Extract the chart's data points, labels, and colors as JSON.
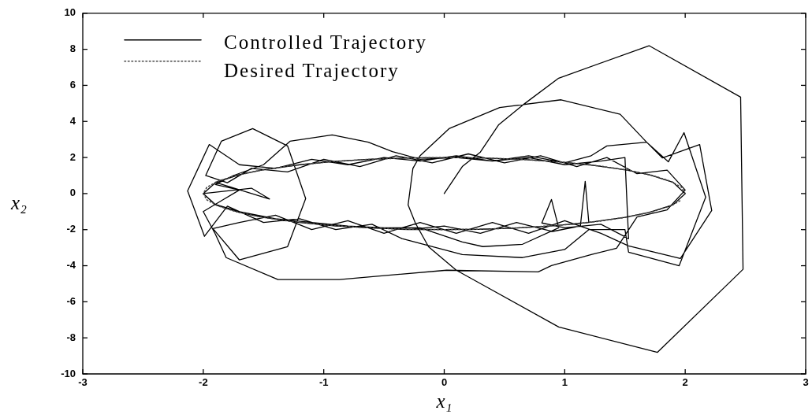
{
  "chart_data": {
    "type": "line",
    "xlabel": "x₁",
    "ylabel": "x₂",
    "xlim": [
      -3,
      3
    ],
    "ylim": [
      -10,
      10
    ],
    "xticks": [
      -3,
      -2,
      -1,
      0,
      1,
      2,
      3
    ],
    "yticks": [
      -10,
      -8,
      -6,
      -4,
      -2,
      0,
      2,
      4,
      6,
      8,
      10
    ],
    "legend": "top left",
    "series": [
      {
        "name": "Controlled Trajectory",
        "color": "#000000",
        "line_style": "solid",
        "x": [
          0,
          0.15,
          0.3,
          0.45,
          0.65,
          0.95,
          1.7,
          2.46,
          2.48,
          1.77,
          0.95,
          0.33,
          0.1,
          -0.13,
          -0.24,
          -0.3,
          -0.26,
          -0.2,
          0.04,
          0.46,
          0.97,
          1.46,
          1.68,
          1.81,
          2.12,
          2.22,
          1.96,
          1.53,
          1.3,
          1.0,
          0.7,
          0.4,
          0.1,
          -0.2,
          -0.5,
          -0.8,
          -1.1,
          -1.4,
          -1.7,
          -1.92,
          -1.7,
          -1.3,
          -1.15,
          -1.3,
          -1.59,
          -1.85,
          -1.98,
          -1.8,
          -1.6,
          -1.3,
          -1.0,
          -0.7,
          -0.4,
          -0.1,
          0.2,
          0.5,
          0.8,
          1.1,
          1.35,
          1.6,
          1.85,
          2.0,
          1.85,
          1.6,
          1.43,
          1.22,
          0.89,
          0.78,
          0.02,
          -0.87,
          -1.38,
          -1.81,
          -1.9,
          -2.0,
          -1.85,
          -1.7,
          -1.9,
          -1.75,
          -1.5,
          -1.28,
          -0.93,
          -0.63,
          -0.43,
          -0.2,
          0.1,
          0.4,
          0.7,
          1.0,
          1.22,
          1.35,
          1.68,
          1.86,
          1.99,
          2.17,
          1.95,
          1.53,
          1.5,
          1.2,
          1.0,
          0.65,
          0.15,
          -0.35,
          -0.6,
          -0.9,
          -1.2,
          -1.5,
          -1.8,
          -1.99,
          -2.13,
          -1.95,
          -1.7,
          -1.4,
          -1.1,
          -0.8,
          -0.5,
          -0.2,
          0.1,
          0.4,
          0.7,
          1.0,
          1.3,
          1.5,
          1.53,
          1.3,
          1.0,
          0.81,
          0.89,
          0.95,
          0.65,
          0.32,
          0.15,
          -0.2,
          -0.5,
          -0.8,
          -1.1,
          -1.4,
          -1.7,
          -1.9,
          -2.0,
          -1.9,
          -1.7,
          -1.5,
          -1.2,
          -0.9,
          -0.6,
          -0.3,
          0,
          0.3,
          0.6,
          0.9,
          1.2,
          1.5,
          1.7,
          1.9,
          2.0,
          1.9,
          1.7,
          1.5,
          1.2,
          1.17,
          1.13,
          0.9,
          0.6,
          0.3,
          0,
          -0.3,
          -0.6,
          -0.9,
          -1.2,
          -1.5,
          -1.7,
          -1.9,
          -2.0,
          -1.6,
          -1.45,
          -1.9,
          -1.7,
          -1.5,
          -1.2,
          -0.9,
          -0.6,
          -0.3,
          0,
          0.3,
          0.6,
          0.9,
          1.2,
          1.5,
          1.7,
          1.9,
          2.0,
          1.9,
          1.7,
          1.5,
          1.2,
          0.9,
          0.6,
          0.3,
          0,
          -0.3,
          -0.6,
          -0.9,
          -1.2,
          -1.5,
          -1.7,
          -1.9,
          -2.0
        ],
        "values": [
          0,
          1.5,
          2.3,
          3.8,
          4.9,
          6.4,
          8.2,
          5.35,
          -4.2,
          -8.8,
          -7.4,
          -5.1,
          -4.25,
          -2.95,
          -1.63,
          -0.63,
          1.4,
          2.1,
          3.6,
          4.77,
          5.2,
          4.4,
          2.85,
          1.98,
          2.72,
          -0.94,
          -3.6,
          -2.9,
          -2.2,
          -1.5,
          -2.2,
          -1.6,
          -2.2,
          -1.6,
          -2.2,
          -1.5,
          -2.0,
          -1.2,
          -1.6,
          -1.94,
          -3.68,
          -2.94,
          -0.28,
          2.64,
          3.6,
          2.9,
          1.0,
          0.6,
          1.4,
          1.2,
          1.9,
          1.5,
          2.1,
          1.7,
          2.2,
          1.7,
          2.1,
          1.5,
          2.0,
          1.1,
          1.3,
          0.2,
          -0.9,
          -1.3,
          -3.03,
          -3.38,
          -3.99,
          -4.34,
          -4.25,
          -4.77,
          -4.77,
          -3.55,
          -2.24,
          -1.0,
          -0.4,
          0.2,
          0.5,
          1.0,
          1.6,
          2.9,
          3.25,
          2.85,
          2.33,
          1.9,
          2.0,
          1.8,
          2.1,
          1.7,
          2.1,
          2.64,
          2.85,
          1.76,
          3.38,
          -0.2,
          -4.0,
          -3.25,
          -2.0,
          -2.0,
          -3.1,
          -3.55,
          -3.38,
          -2.5,
          -1.7,
          -2.0,
          -1.4,
          -1.6,
          -0.7,
          -2.37,
          0.15,
          2.72,
          1.6,
          1.4,
          1.9,
          1.6,
          2.0,
          1.8,
          2.1,
          1.8,
          2.0,
          1.6,
          1.8,
          2.0,
          -2.5,
          -1.7,
          -1.9,
          -1.63,
          -0.33,
          -1.9,
          -2.81,
          -2.94,
          -2.68,
          -1.9,
          -1.9,
          -1.8,
          -1.6,
          -1.4,
          -1.0,
          -0.6,
          0.0,
          0.6,
          1.05,
          1.32,
          1.6,
          1.79,
          1.91,
          1.98,
          2.0,
          1.98,
          1.91,
          1.79,
          1.6,
          1.32,
          1.05,
          0.62,
          0,
          -0.62,
          -1.05,
          -1.32,
          -1.6,
          0.68,
          -1.8,
          -2.1,
          -1.6,
          -2.2,
          -1.8,
          -2.0,
          -1.9,
          -1.8,
          -1.6,
          -1.32,
          -1.05,
          -0.62,
          0,
          0.3,
          -0.3,
          0.62,
          1.05,
          1.32,
          1.6,
          1.79,
          1.91,
          1.98,
          2.0,
          1.98,
          1.91,
          1.79,
          1.6,
          1.32,
          1.05,
          0.62,
          0,
          -0.62,
          -1.05,
          -1.32,
          -1.6,
          -1.79,
          -1.91,
          -1.98,
          -2.0,
          -1.98,
          -1.91,
          -1.79,
          -1.6,
          -1.32,
          -1.05,
          -0.62,
          0
        ]
      },
      {
        "name": "Desired Trajectory",
        "color": "#444444",
        "line_style": "dotted",
        "x": [
          2,
          1.97,
          1.88,
          1.73,
          1.53,
          1.29,
          1,
          0.68,
          0.35,
          0,
          -0.35,
          -0.68,
          -1,
          -1.29,
          -1.53,
          -1.73,
          -1.88,
          -1.97,
          -2,
          -1.97,
          -1.88,
          -1.73,
          -1.53,
          -1.29,
          -1,
          -0.68,
          -0.35,
          0,
          0.35,
          0.68,
          1,
          1.29,
          1.53,
          1.73,
          1.88,
          1.97
        ],
        "values": [
          0,
          0.35,
          0.68,
          1,
          1.29,
          1.53,
          1.73,
          1.88,
          1.97,
          2,
          1.97,
          1.88,
          1.73,
          1.53,
          1.29,
          1,
          0.68,
          0.35,
          0,
          -0.35,
          -0.68,
          -1,
          -1.29,
          -1.53,
          -1.73,
          -1.88,
          -1.97,
          -2,
          -1.97,
          -1.88,
          -1.73,
          -1.53,
          -1.29,
          -1,
          -0.68,
          -0.35
        ]
      }
    ]
  }
}
